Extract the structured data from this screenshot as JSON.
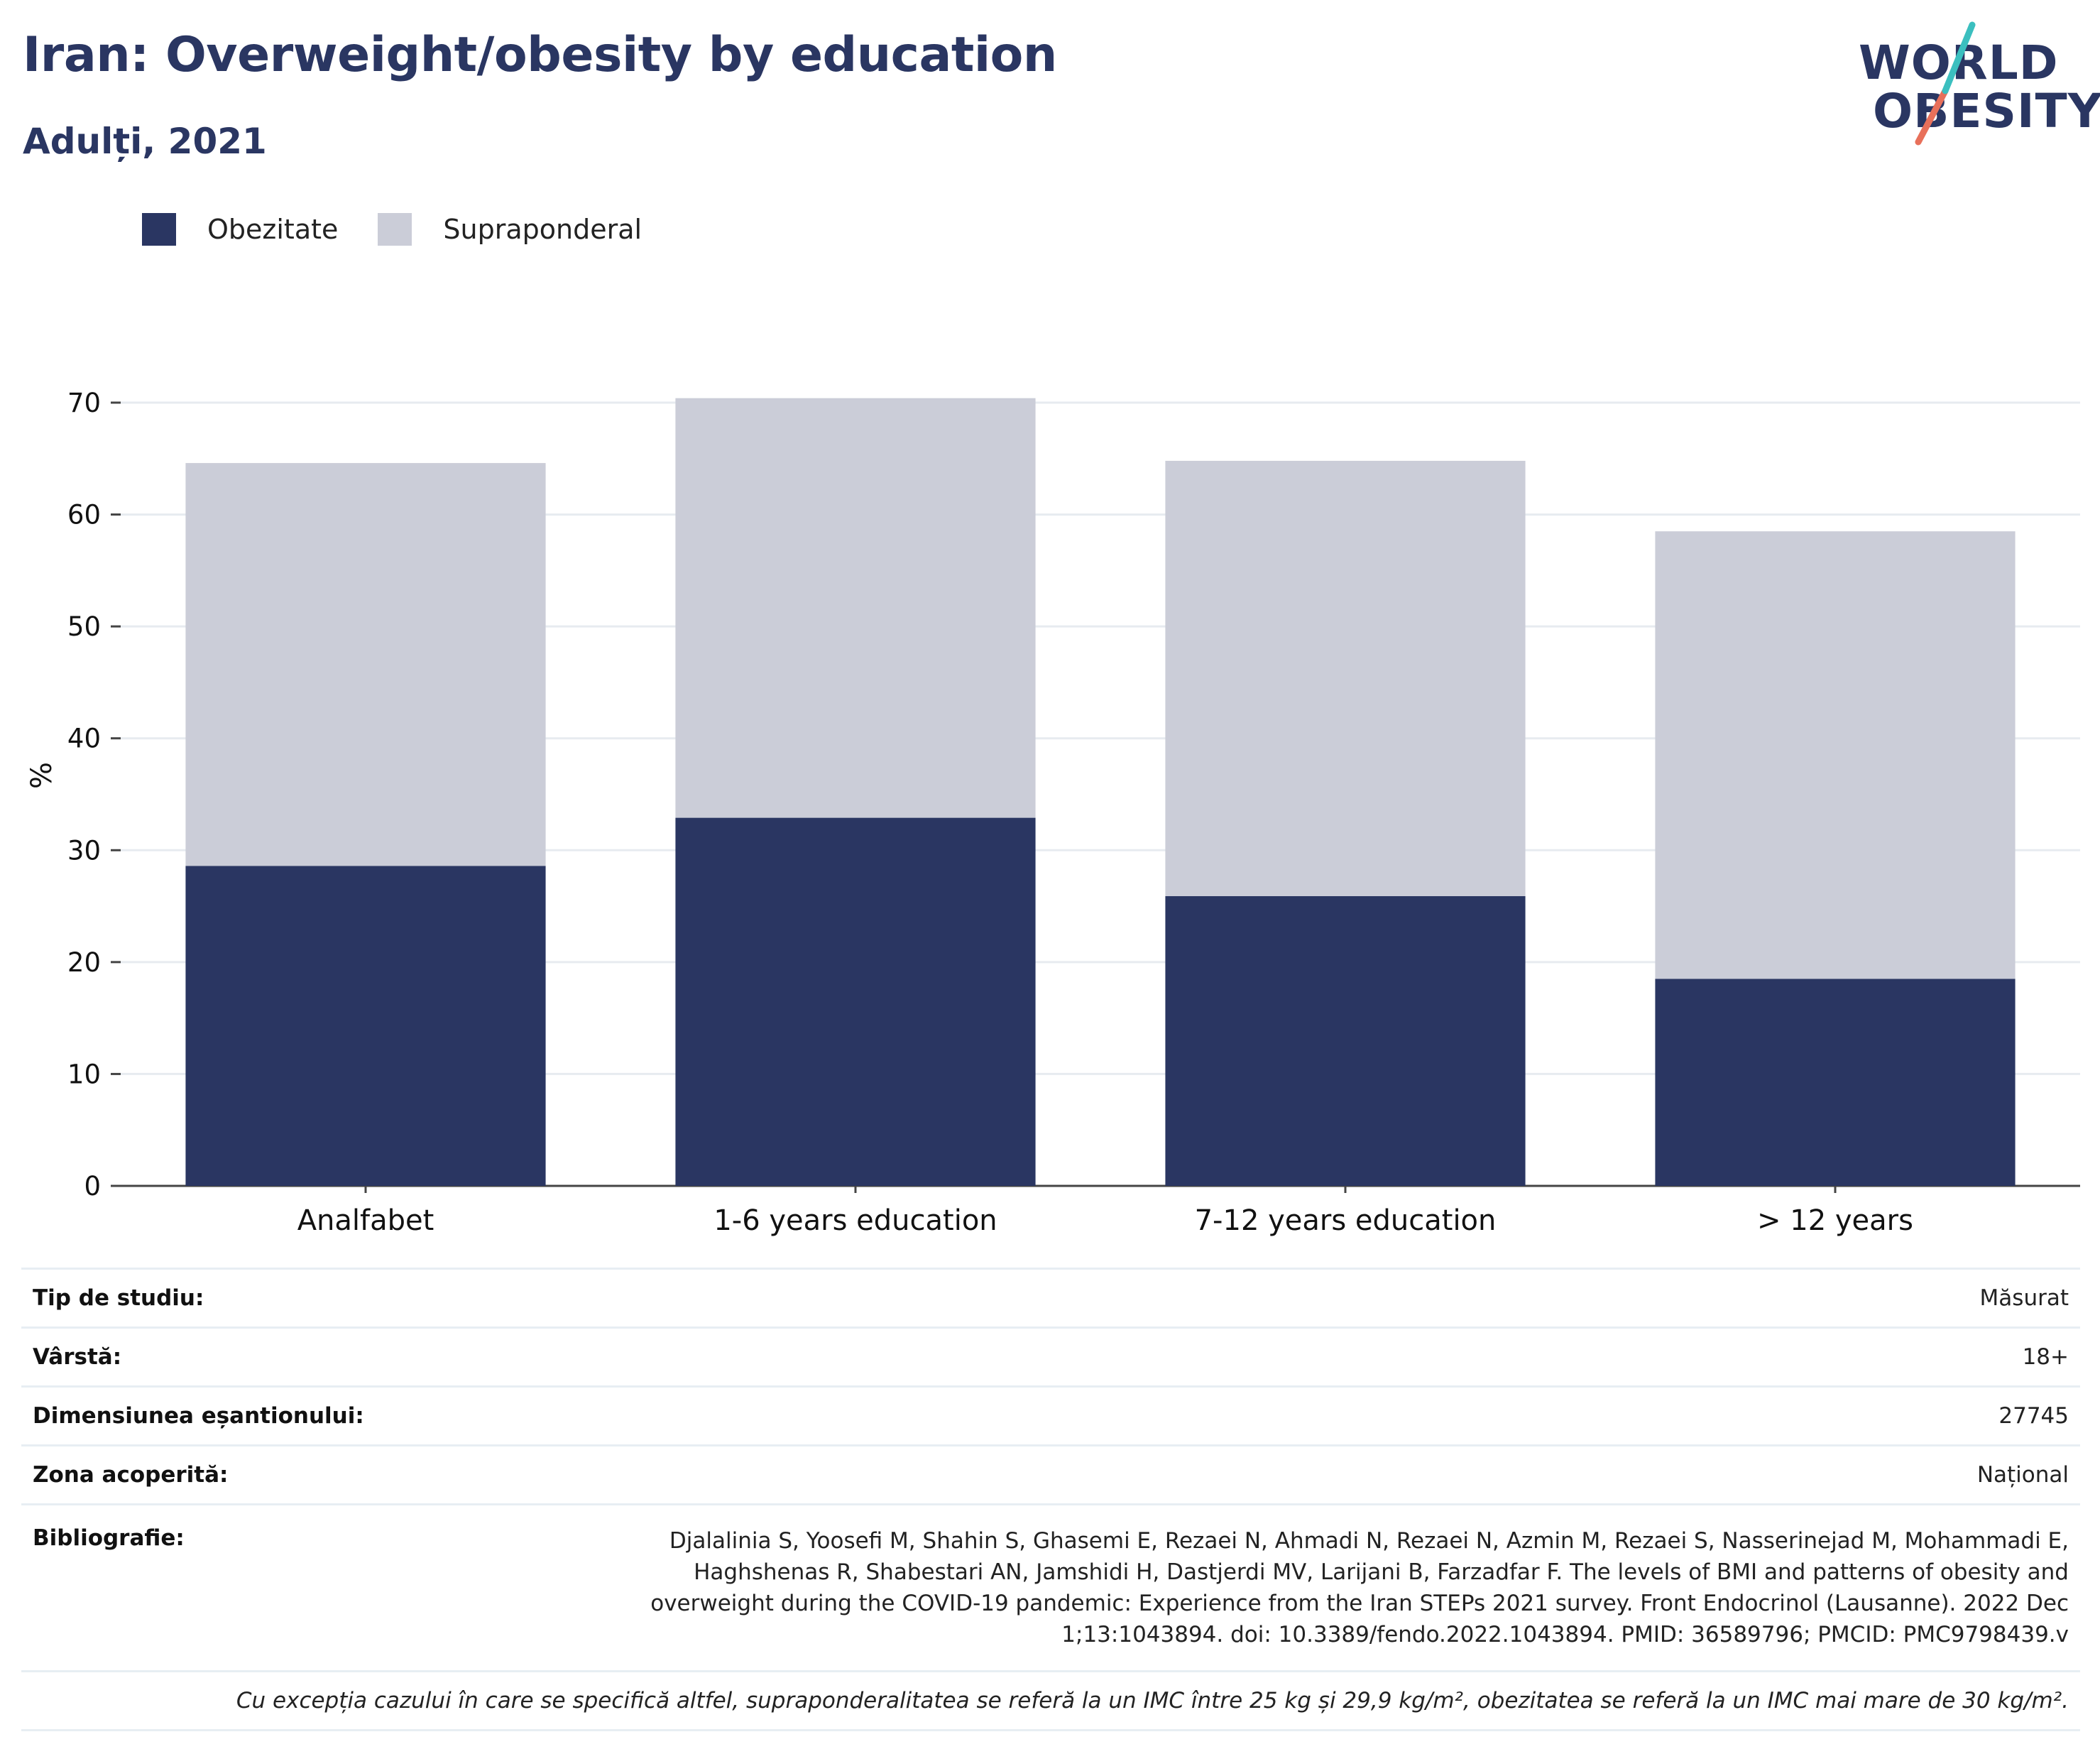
{
  "header": {
    "title": "Iran: Overweight/obesity by education",
    "subtitle": "Adulți, 2021"
  },
  "logo": {
    "line1": "WORLD",
    "line2": "OBESITY"
  },
  "colors": {
    "obesity": "#2a3662",
    "overweight": "#cbcdd8",
    "title": "#2a3662",
    "logo_teal": "#3bbfbf",
    "logo_coral": "#e8705a"
  },
  "chart_data": {
    "type": "bar",
    "stacked": true,
    "categories": [
      "Analfabet",
      "1-6 years education",
      "7-12 years education",
      "> 12 years"
    ],
    "series": [
      {
        "name": "Obezitate",
        "values": [
          28.6,
          32.9,
          25.9,
          18.5
        ]
      },
      {
        "name": "Supraponderal",
        "values": [
          36.0,
          37.5,
          38.9,
          40.0
        ]
      }
    ],
    "ylabel": "%",
    "ylim": [
      0,
      70
    ],
    "yticks": [
      0,
      10,
      20,
      30,
      40,
      50,
      60,
      70
    ],
    "grid": true,
    "legend": "top-left"
  },
  "info": {
    "study_type_label": "Tip de studiu:",
    "study_type_value": "Măsurat",
    "age_label": "Vârstă:",
    "age_value": "18+",
    "sample_label": "Dimensiunea eșantionului:",
    "sample_value": "27745",
    "area_label": "Zona acoperită:",
    "area_value": "Național",
    "biblio_label": "Bibliografie:",
    "biblio_value": "Djalalinia S, Yoosefi M, Shahin S, Ghasemi E, Rezaei N, Ahmadi N, Rezaei N, Azmin M, Rezaei S, Nasserinejad M, Mohammadi E, Haghshenas R, Shabestari AN, Jamshidi H, Dastjerdi MV, Larijani B, Farzadfar F. The levels of BMI and patterns of obesity and overweight during the COVID-19 pandemic: Experience from the Iran STEPs 2021 survey. Front Endocrinol (Lausanne). 2022 Dec 1;13:1043894. doi: 10.3389/fendo.2022.1043894. PMID: 36589796; PMCID: PMC9798439.v",
    "note": "Cu excepția cazului în care se specifică altfel, supraponderalitatea se referă la un IMC între 25 kg și 29,9 kg/m², obezitatea se referă la un IMC mai mare de 30 kg/m²."
  }
}
